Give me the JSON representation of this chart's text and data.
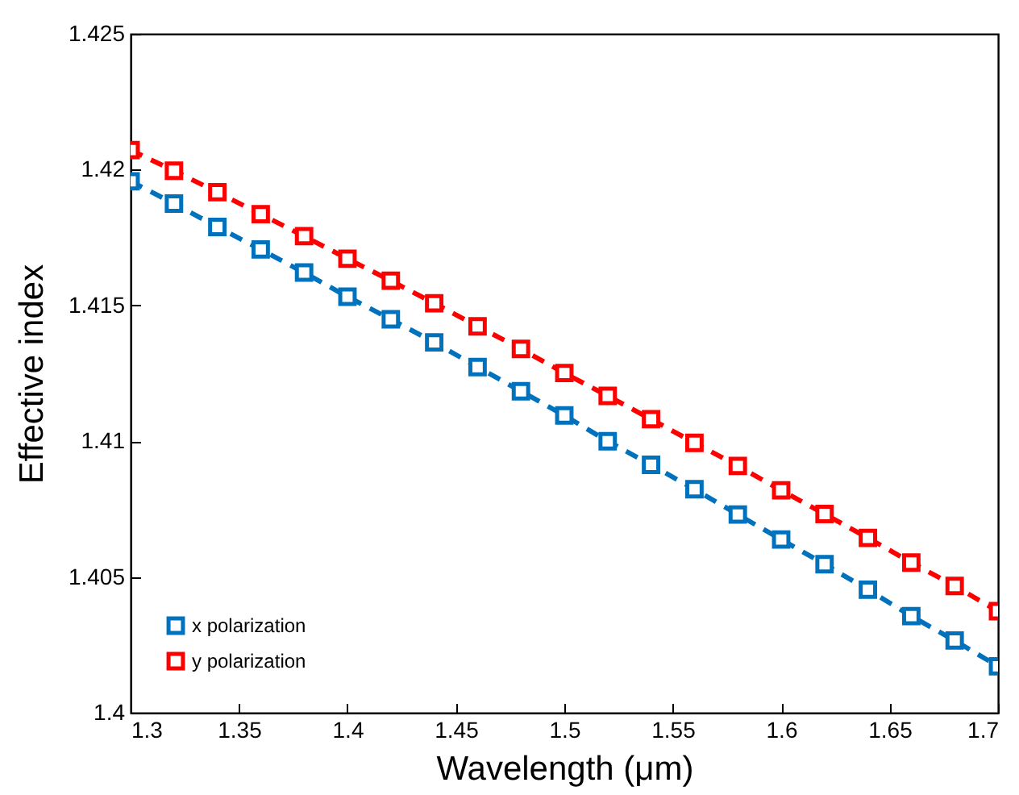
{
  "chart_data": {
    "type": "line",
    "xlabel": "Wavelength (μm)",
    "ylabel": "Effective index",
    "x": [
      1.3,
      1.32,
      1.34,
      1.36,
      1.38,
      1.4,
      1.42,
      1.44,
      1.46,
      1.48,
      1.5,
      1.52,
      1.54,
      1.56,
      1.58,
      1.6,
      1.62,
      1.64,
      1.66,
      1.68,
      1.7
    ],
    "series": [
      {
        "name": "x polarization",
        "color": "#0072bd",
        "values": [
          1.41957,
          1.41875,
          1.41789,
          1.41706,
          1.41621,
          1.41532,
          1.41449,
          1.41364,
          1.41273,
          1.41184,
          1.41095,
          1.41,
          1.40913,
          1.40823,
          1.4073,
          1.40638,
          1.40547,
          1.40453,
          1.40356,
          1.40266,
          1.40171
        ]
      },
      {
        "name": "y polarization",
        "color": "#ff0000",
        "values": [
          1.42072,
          1.41996,
          1.41917,
          1.41836,
          1.41755,
          1.41672,
          1.41591,
          1.41508,
          1.41423,
          1.4134,
          1.41251,
          1.41167,
          1.41081,
          1.40994,
          1.40909,
          1.40819,
          1.40732,
          1.40644,
          1.40553,
          1.40467,
          1.40374
        ]
      }
    ],
    "xlim": [
      1.3,
      1.7
    ],
    "xticks": [
      1.3,
      1.35,
      1.4,
      1.45,
      1.5,
      1.55,
      1.6,
      1.65,
      1.7
    ],
    "ylim": [
      1.4,
      1.425
    ],
    "yticks": [
      1.4,
      1.405,
      1.41,
      1.415,
      1.42,
      1.425
    ],
    "grid": false,
    "legend": "bottom left",
    "marker": "square",
    "line_style": "dashed"
  }
}
